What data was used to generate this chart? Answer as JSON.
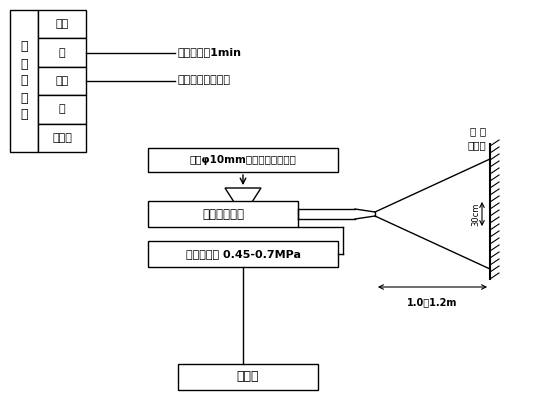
{
  "bg_color": "#ffffff",
  "text_color": "#000000",
  "table_items": [
    "水泥",
    "砂",
    "石子",
    "水",
    "外加剂"
  ],
  "table_title": "混\n凝\n土\n拌\n和",
  "mix_time_label": "拌和时间＜1min",
  "transport_label": "混凝土运输车运送",
  "sieve_label": "筛网φ10mm（滤出超径石子）",
  "machine_label": "混凝土噴射机",
  "pressure_label": "风压控制在 0.45-0.7MPa",
  "accelerator_label": "速凝剂",
  "spray_label1": "受 噴",
  "spray_label2": "围岩面",
  "dimension1": "30cm",
  "dimension2": "1.0～1.2m"
}
